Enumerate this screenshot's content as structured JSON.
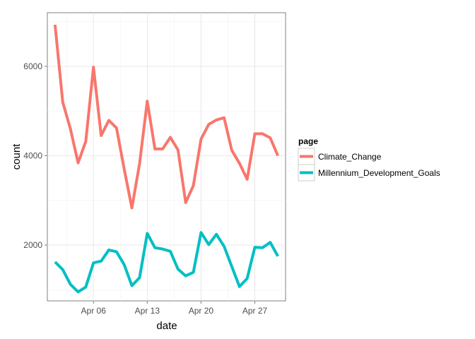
{
  "chart_data": {
    "type": "line",
    "xlabel": "date",
    "ylabel": "count",
    "x_tick_labels": [
      "Apr 06",
      "Apr 13",
      "Apr 20",
      "Apr 27"
    ],
    "y_tick_labels": [
      "2000",
      "4000",
      "6000"
    ],
    "x_ticks": [
      "2014-04-06",
      "2014-04-13",
      "2014-04-20",
      "2014-04-27"
    ],
    "y_ticks": [
      2000,
      4000,
      6000
    ],
    "xlim": [
      "2014-03-31",
      "2014-05-01"
    ],
    "ylim": [
      750,
      7200
    ],
    "grid": true,
    "legend": {
      "title": "page",
      "position": "right"
    },
    "x": [
      "2014-04-01",
      "2014-04-02",
      "2014-04-03",
      "2014-04-04",
      "2014-04-05",
      "2014-04-06",
      "2014-04-07",
      "2014-04-08",
      "2014-04-09",
      "2014-04-10",
      "2014-04-11",
      "2014-04-12",
      "2014-04-13",
      "2014-04-14",
      "2014-04-15",
      "2014-04-16",
      "2014-04-17",
      "2014-04-18",
      "2014-04-19",
      "2014-04-20",
      "2014-04-21",
      "2014-04-22",
      "2014-04-23",
      "2014-04-24",
      "2014-04-25",
      "2014-04-26",
      "2014-04-27",
      "2014-04-28",
      "2014-04-29",
      "2014-04-30"
    ],
    "series": [
      {
        "name": "Climate_Change",
        "color": "#F8766D",
        "values": [
          6930,
          5200,
          4600,
          3840,
          4320,
          5980,
          4450,
          4790,
          4620,
          3700,
          2830,
          3820,
          5220,
          4150,
          4150,
          4410,
          4130,
          2950,
          3330,
          4370,
          4700,
          4800,
          4850,
          4120,
          3830,
          3470,
          4490,
          4490,
          4400,
          4000
        ]
      },
      {
        "name": "Millennium_Development_Goals",
        "color": "#00BFC4",
        "values": [
          1620,
          1450,
          1120,
          950,
          1060,
          1600,
          1640,
          1890,
          1850,
          1560,
          1090,
          1270,
          2260,
          1940,
          1910,
          1860,
          1460,
          1310,
          1390,
          2280,
          2010,
          2240,
          1970,
          1520,
          1070,
          1250,
          1950,
          1940,
          2060,
          1750
        ]
      }
    ]
  }
}
